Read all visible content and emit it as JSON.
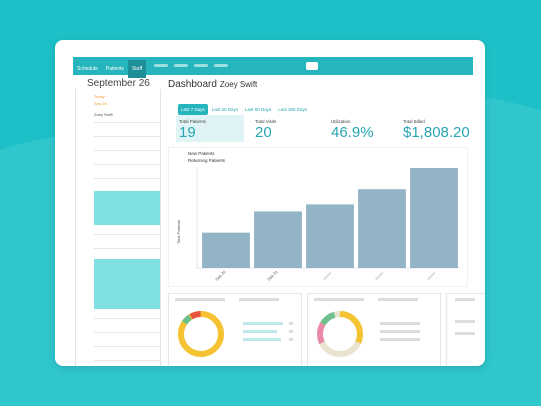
{
  "nav": {
    "items": [
      "Schedule",
      "Patients",
      "Staff"
    ]
  },
  "sidebar": {
    "date": "September 26",
    "entries": [
      "Today",
      "Sep 26",
      "Zoey Swift"
    ]
  },
  "dashboard": {
    "title": "Dashboard",
    "patient": "Zoey Swift",
    "tabs": [
      "Last 7 Days",
      "Last 30 Days",
      "Last 90 Days",
      "Last 365 Days"
    ],
    "stats": [
      {
        "label": "Total Patients",
        "value": "19"
      },
      {
        "label": "Total Visits",
        "value": "20"
      },
      {
        "label": "Utilization",
        "value": "46.9%"
      },
      {
        "label": "Total Billed",
        "value": "$1,808.20"
      }
    ]
  },
  "chart": {
    "type": "bar",
    "legend": [
      "New Patients",
      "Returning Patients"
    ],
    "y_label": "Total Patients",
    "categories": [
      "Sep 20",
      "Sep 21",
      null,
      null,
      null
    ],
    "values": [
      35,
      56,
      63,
      78,
      99
    ],
    "ylim": [
      0,
      100
    ],
    "color": "#93b3c6"
  }
}
